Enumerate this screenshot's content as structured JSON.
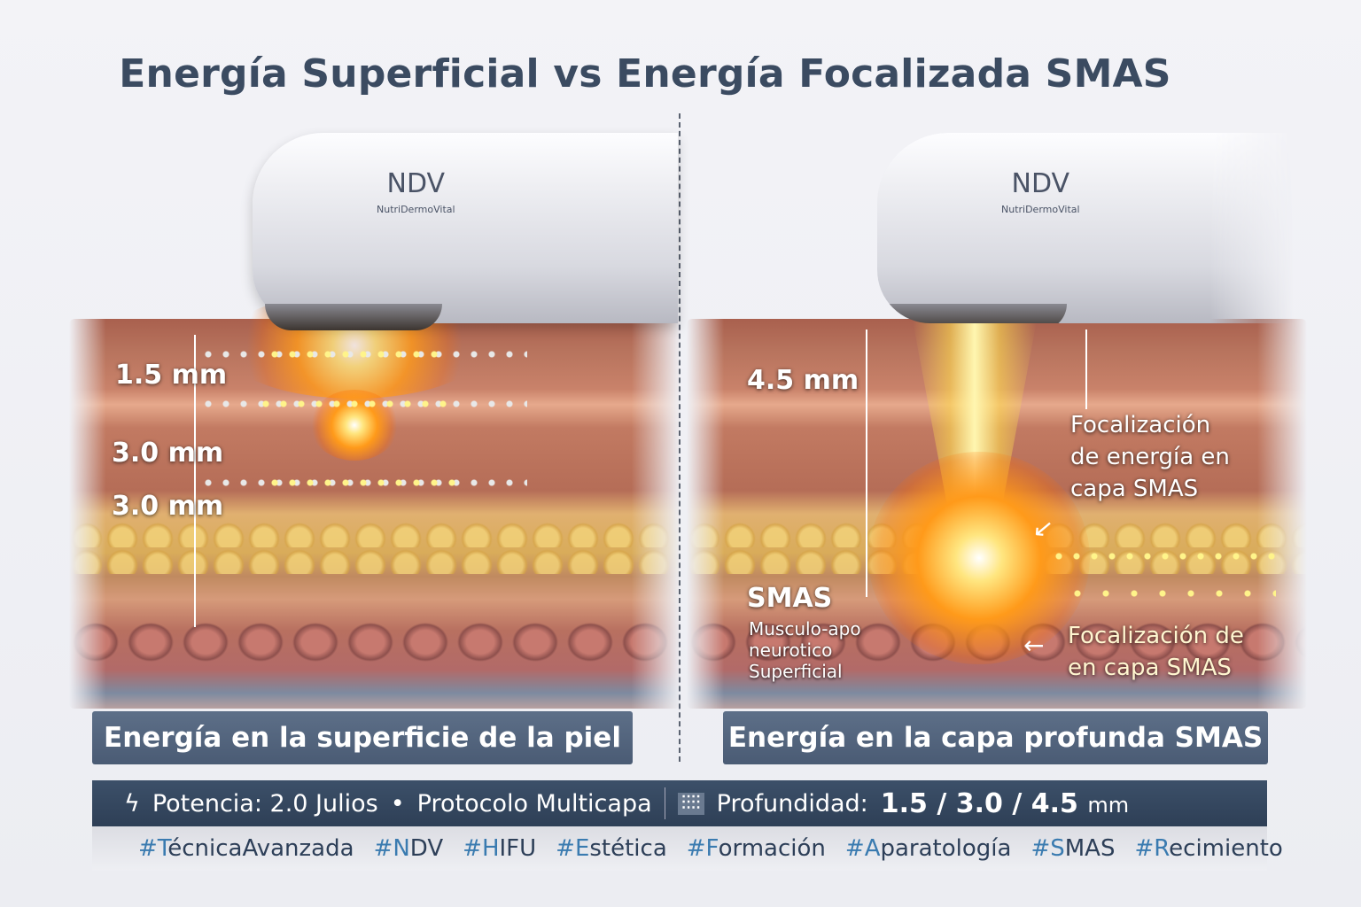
{
  "title": "Energía Superficial vs Energía Focalizada SMAS",
  "device": {
    "brand": "NDV",
    "subbrand": "NutriDermoVital"
  },
  "left": {
    "depth_labels": [
      "1.5 mm",
      "3.0 mm",
      "3.0 mm"
    ],
    "caption": "Energía en la superficie de la piel"
  },
  "right": {
    "depth_label": "4.5 mm",
    "smas_label": "SMAS",
    "smas_desc": [
      "Musculo-apo",
      "neurotico",
      "Superficial"
    ],
    "note_top": [
      "Focalización",
      "de energía en",
      "capa SMAS"
    ],
    "note_bottom": [
      "Focalización de",
      "en capa SMAS"
    ],
    "caption": "Energía en la capa profunda SMAS"
  },
  "infobar": {
    "power": "Potencia: 2.0 Julios",
    "protocol": "Protocolo Multicapa",
    "depth_label": "Profundidad:",
    "depth_value": "1.5 / 3.0 / 4.5",
    "depth_unit": "mm",
    "icons": [
      "lightning-icon",
      "depth-probes-icon"
    ]
  },
  "hashtags": [
    "#TécnicaAvanzada",
    "#NDV",
    "#HIFU",
    "#Estética",
    "#Formación",
    "#Aparatología",
    "#SMAS",
    "#Recimiento"
  ],
  "colors": {
    "title": "#3b4b61",
    "bar": "#34465f",
    "energy": "#ff9a1a"
  }
}
